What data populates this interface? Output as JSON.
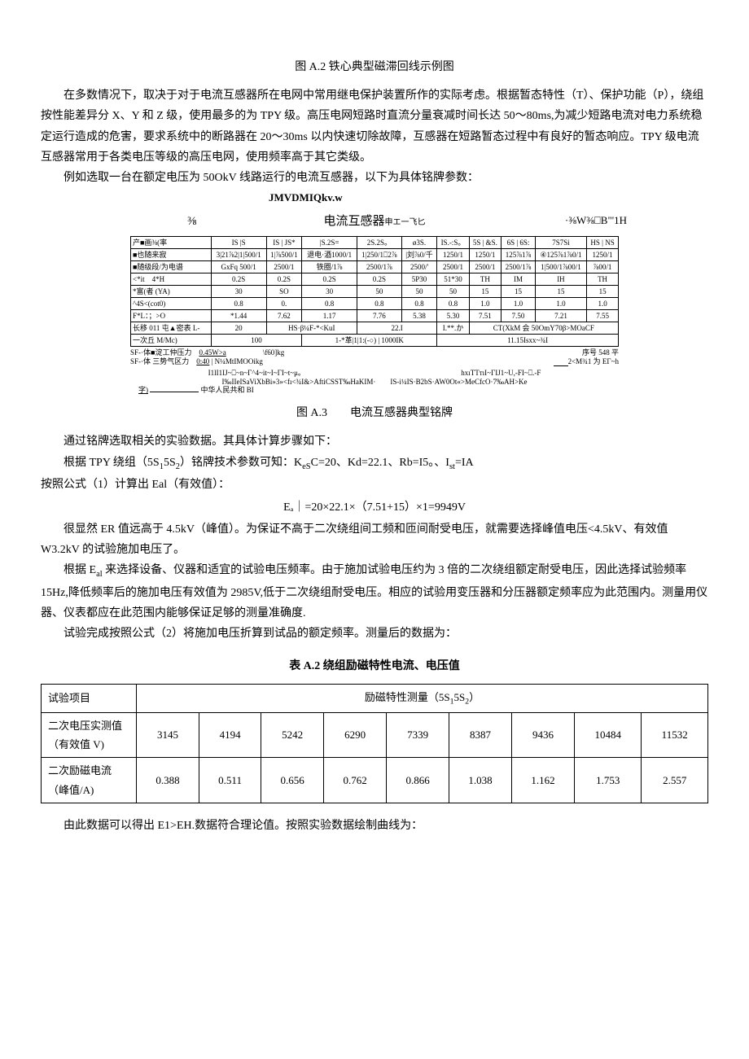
{
  "fig_a2_caption": "图 A.2 铁心典型磁滞回线示例图",
  "para1": "在多数情况下，取决于对于电流互感器所在电网中常用继电保护装置所作的实际考虑。根据暂态特性（T）、保护功能（P），绕组按性能差异分 X、Y 和 Z 级，使用最多的为 TPY 级。高压电网短路时直流分量衰减时间长达 50～80ms,为减少短路电流对电力系统稳定运行造成的危害，要求系统中的断路器在 20～30ms 以内快速切除故障，互感器在短路暂态过程中有良好的暂态响应。TPY 级电流互感器常用于各类电压等级的高压电网，使用频率高于其它类级。",
  "para2": "例如选取一台在额定电压为 50OkV 线路运行的电流互感器，以下为具体铭牌参数：",
  "nameplate": {
    "top_code": "JMVDMIQkv.w",
    "header_left": "⅜",
    "header_title": "电流互感器",
    "header_suffix": "申エ一飞匕",
    "header_right": "·⅜W⅜⎕B\"'1H",
    "row_headers": [
      "产■画⅜(率",
      "■也随来寂",
      "■随级段/为电谱",
      "<*it　4*H",
      "*富(者 (YA)",
      "^4S<(cot0)",
      "F*L：；>O",
      "长移 011 屯▲密表 L-",
      "一次丘 M/Mc)",
      "SF-·体■淀工仲压力",
      "SF-·体 三势气区力"
    ],
    "col1": [
      "IS |S",
      "3|21⅞2|1|500/1",
      "GxFq 500/1",
      "0.2S",
      "30",
      "0.8",
      "*1.44",
      "20",
      "100",
      "0.45W>a",
      "0:40"
    ],
    "col2": [
      "IS | JS*",
      "1|⅞500/1",
      "2500/1",
      "0.2S",
      "SO",
      "0.",
      "7.62",
      "HS·β¼F-*<KuI",
      "",
      "",
      ""
    ],
    "col3": [
      "|S.2S=",
      "退电·酒1000/1",
      "铁圈/1⅞",
      "0.2S",
      "30",
      "0.8",
      "1.17",
      "",
      "1-*革|1|1:(-○) | 1000IK",
      "",
      ""
    ],
    "col4": [
      "2S.2S。",
      "1|250/1⎕2⅞",
      "2500/1⅞",
      "0.2S",
      "50",
      "0.8",
      "7.76",
      "22.I",
      "",
      "\\f60]kg",
      "N¼MtIMOOikg"
    ],
    "col5": [
      "ø3S.",
      "|刘⅞0/千",
      "2500/'",
      "5P30",
      "50",
      "0.8",
      "5.38",
      "",
      "",
      "",
      ""
    ],
    "col6": [
      "IS.-:S。",
      "1250/1",
      "2500/1",
      "51*30",
      "50",
      "0.8",
      "5.30",
      "I.**.か",
      "11.15Isxx~¾I",
      "",
      ""
    ],
    "col7": [
      "5S | &S.",
      "1250/1",
      "2500/1",
      "TH",
      "15",
      "1.0",
      "7.51",
      "CT(XkM 会 50OmY70β>MOaCF",
      "",
      "序号 548 平",
      ""
    ],
    "col8": [
      "6S | 6S:",
      "125⅞1⅞",
      "2500/1⅞",
      "IM",
      "15",
      "1.0",
      "7.50",
      "",
      "",
      "",
      ""
    ],
    "col9": [
      "7S7Si",
      "④125⅞1⅞0/1",
      "1|500/1⅞00/1",
      "IH",
      "15",
      "1.0",
      "7.21",
      "",
      "",
      "",
      "2<M¾1 为 EΓ~h"
    ],
    "col10": [
      "HS | NS",
      "1250/1",
      "⅞00/1",
      "TH",
      "15",
      "1.0",
      "7.55",
      "",
      "",
      "",
      ""
    ],
    "garbled1": "I1lI1IJ~⎕~n~Γ^4~it~I~ΓI~t~μ。",
    "garbled2": "hxıTTтıI~ΓIJ1~U,-FI~⎕.-F",
    "garbled3": "I‰IIeISaViXbBi»3»<fı<¾І&>AftiCSST‰HaKIM·　　IS-i¼IS·B2bS·AW0Ot«>MeCfcO·7‰AH>Ke",
    "bottom_left": "字)",
    "bottom_right": "中华人民共和 BI"
  },
  "fig_a3_caption": "图 A.3　　电流互感器典型铭牌",
  "para3": "通过铭牌选取相关的实验数据。其具体计算步骤如下：",
  "para4_prefix": "根据 TPY 绕组（5S",
  "para4_mid": "5S",
  "para4_suffix": "）铭牌技术参数可知：K",
  "para4_rest": "C=20、Kd=22.1、Rb=I5。、I",
  "para4_end": "=IA",
  "para5": "按照公式（1）计算出 Eal（有效值）：",
  "formula1": "Eₐ｜=20×22.1×（7.51+15）×1=9949V",
  "para6": "很显然 ER 值远高于 4.5kV（峰值）。为保证不高于二次绕组间工频和匝间耐受电压，就需要选择峰值电压<4.5kV、有效值 W3.2kV 的试验施加电压了。",
  "para7_prefix": "根据 E",
  "para7_rest": " 来选择设备、仪器和适宜的试验电压频率。由于施加试验电压约为 3 倍的二次绕组额定耐受电压，因此选择试验频率 15Hz,降低频率后的施加电压有效值为 2985V,低于二次绕组耐受电压。相应的试验用变压器和分压器额定频率应为此范围内。测量用仪器、仪表都应在此范围内能够保证足够的测量准确度.",
  "para8": "试验完成按照公式（2）将施加电压折算到试品的额定频率。测量后的数据为：",
  "table_a2": {
    "title": "表 A.2 绕组励磁特性电流、电压值",
    "header_col": "试验项目",
    "header_span_prefix": "励磁特性测量（5S",
    "header_span_mid": "5S",
    "header_span_suffix": "）",
    "row1_label": "二次电压实测值（有效值 V)",
    "row1_values": [
      "3145",
      "4194",
      "5242",
      "6290",
      "7339",
      "8387",
      "9436",
      "10484",
      "11532"
    ],
    "row2_label": "二次励磁电流（峰值/A)",
    "row2_values": [
      "0.388",
      "0.511",
      "0.656",
      "0.762",
      "0.866",
      "1.038",
      "1.162",
      "1.753",
      "2.557"
    ]
  },
  "para9": "由此数据可以得出 E1>EH.数据符合理论值。按照实验数据绘制曲线为："
}
